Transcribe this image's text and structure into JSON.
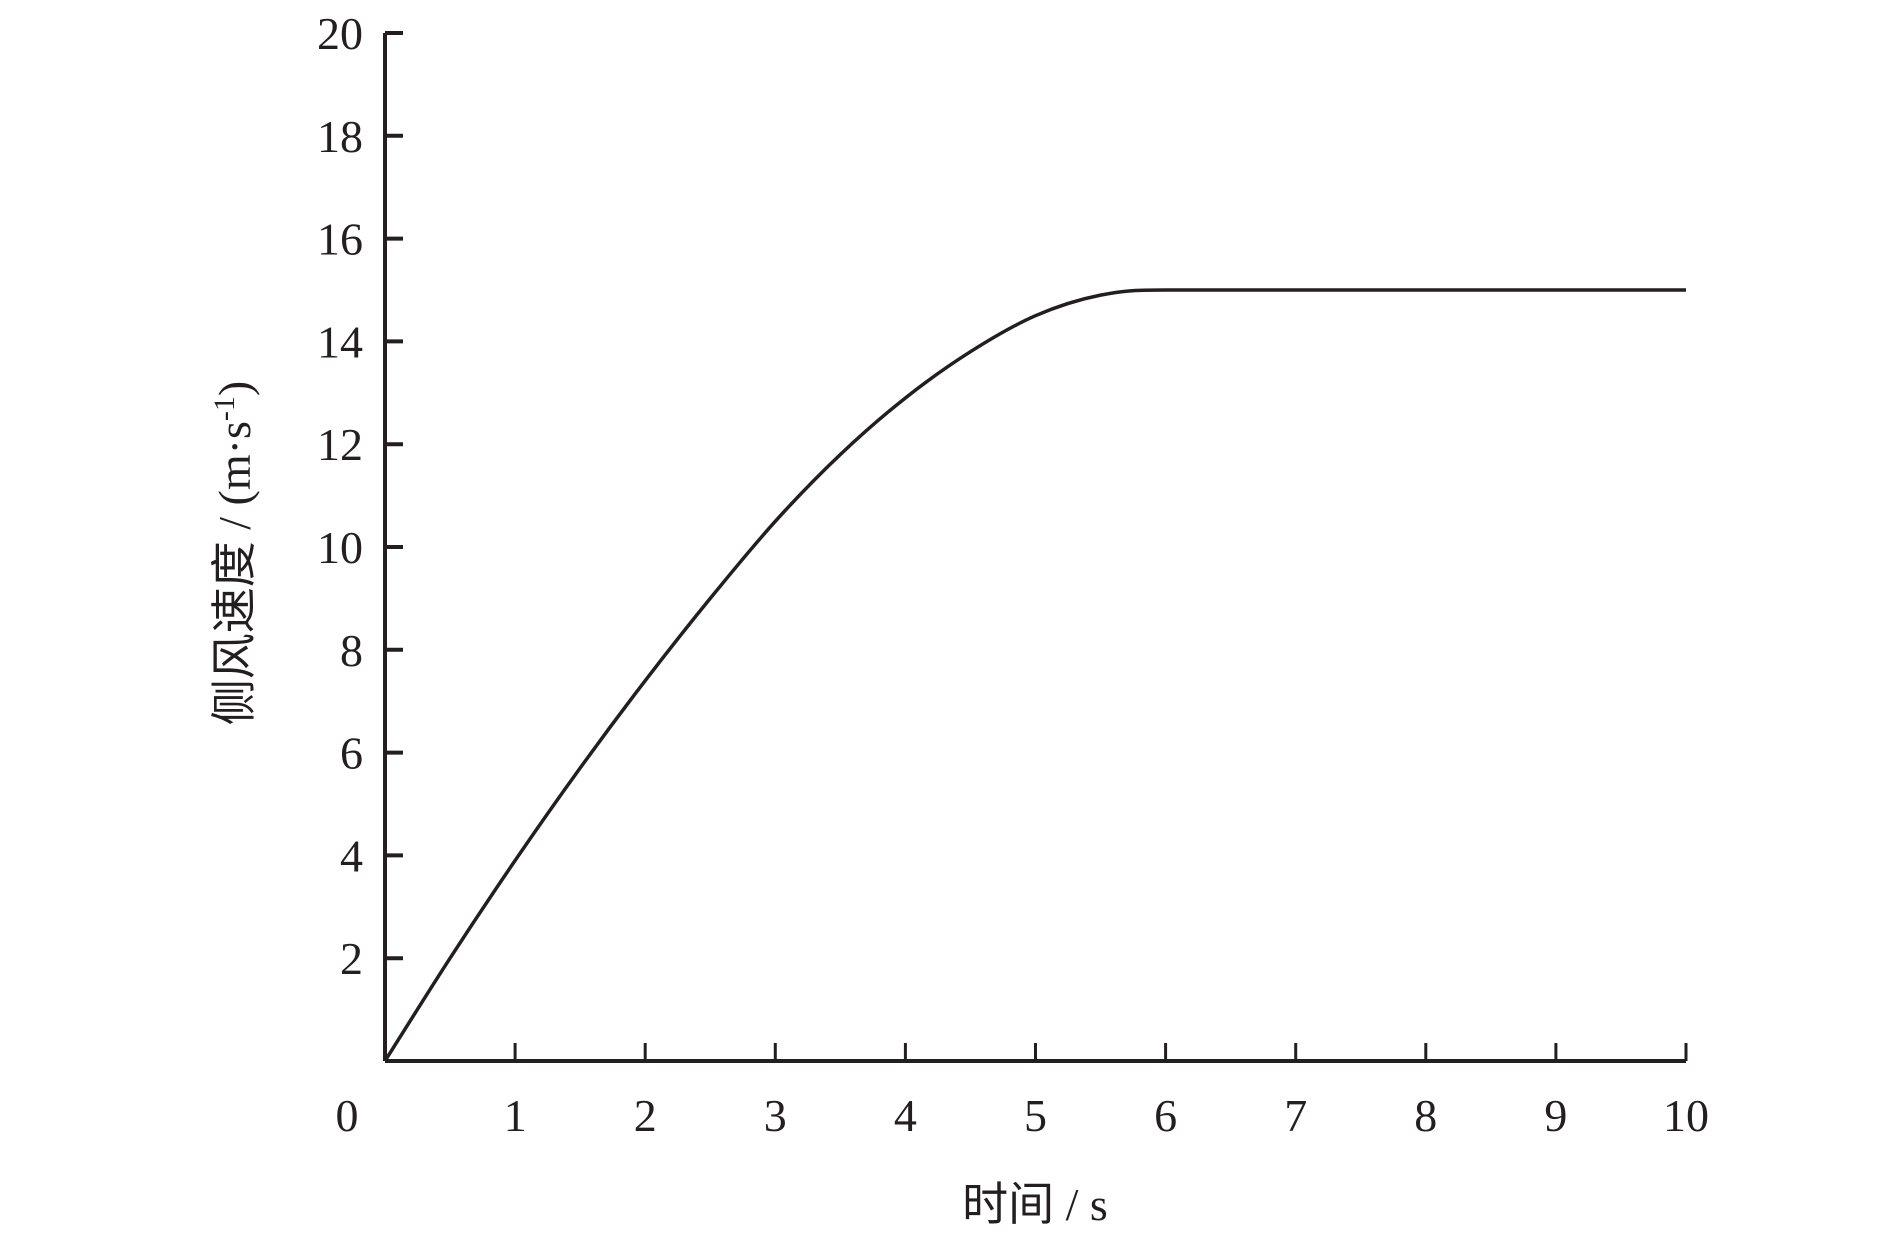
{
  "chart_data": {
    "type": "line",
    "title": "",
    "xlabel": "时间 / s",
    "ylabel_main": "侧风速度 / (m·s",
    "ylabel_sup": "-1",
    "ylabel_end": ")",
    "xlim": [
      0,
      10
    ],
    "ylim": [
      0,
      20
    ],
    "x_ticks": [
      0,
      1,
      2,
      3,
      4,
      5,
      6,
      7,
      8,
      9,
      10
    ],
    "y_ticks": [
      2,
      4,
      6,
      8,
      10,
      12,
      14,
      16,
      18,
      20
    ],
    "x_tick_labels": [
      "0",
      "1",
      "2",
      "3",
      "4",
      "5",
      "6",
      "7",
      "8",
      "9",
      "10"
    ],
    "y_tick_labels": [
      "2",
      "4",
      "6",
      "8",
      "10",
      "12",
      "14",
      "16",
      "18",
      "20"
    ],
    "grid": false,
    "line_color": "#231f20",
    "series": [
      {
        "x": [
          0,
          0.5,
          1,
          1.5,
          2,
          2.5,
          3,
          3.5,
          4,
          4.5,
          5,
          5.5,
          6,
          7,
          8,
          9,
          10
        ],
        "y": [
          0,
          2.0,
          3.9,
          5.7,
          7.4,
          9.0,
          10.5,
          11.8,
          12.9,
          13.8,
          14.5,
          14.9,
          15,
          15,
          15,
          15,
          15
        ]
      }
    ]
  }
}
